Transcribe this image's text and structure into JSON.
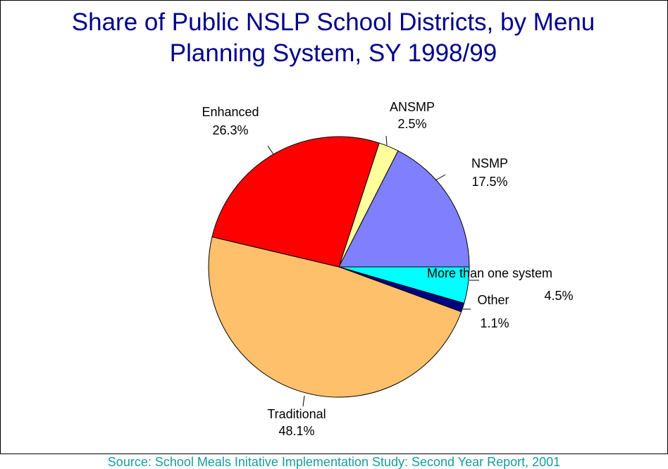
{
  "chart_data": {
    "type": "pie",
    "title_line1": "Share of Public NSLP School Districts, by Menu",
    "title_line2": "Planning System, SY 1998/99",
    "slices": [
      {
        "name": "More than one system",
        "value": 4.5,
        "label": "4.5%",
        "color": "#00ffff"
      },
      {
        "name": "Other",
        "value": 1.1,
        "label": "1.1%",
        "color": "#000080"
      },
      {
        "name": "Traditional",
        "value": 48.1,
        "label": "48.1%",
        "color": "#ffc06c"
      },
      {
        "name": "Enhanced",
        "value": 26.3,
        "label": "26.3%",
        "color": "#ff0000"
      },
      {
        "name": "ANSMP",
        "value": 2.5,
        "label": "2.5%",
        "color": "#ffff9c"
      },
      {
        "name": "NSMP",
        "value": 17.5,
        "label": "17.5%",
        "color": "#8080ff"
      }
    ],
    "start_angle_deg": 0,
    "direction": "clockwise"
  },
  "source": "Source: School Meals Initative Implementation Study: Second Year Report, 2001"
}
